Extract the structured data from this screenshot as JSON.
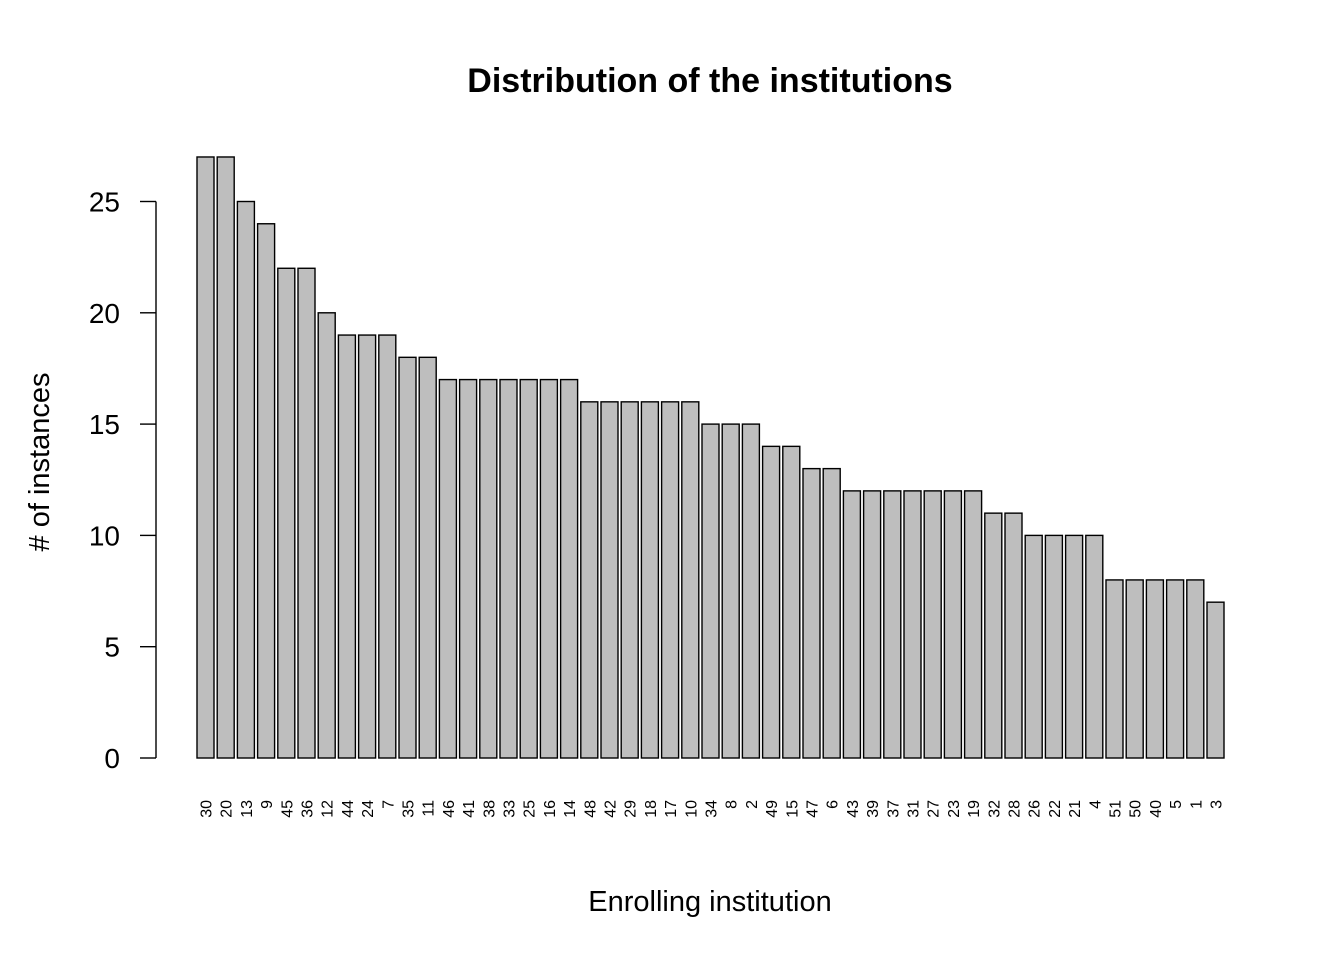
{
  "chart_data": {
    "type": "bar",
    "title": "Distribution of the institutions",
    "xlabel": "Enrolling institution",
    "ylabel": "# of instances",
    "categories": [
      "30",
      "20",
      "13",
      "9",
      "45",
      "36",
      "12",
      "44",
      "24",
      "7",
      "35",
      "11",
      "46",
      "41",
      "38",
      "33",
      "25",
      "16",
      "14",
      "48",
      "42",
      "29",
      "18",
      "17",
      "10",
      "34",
      "8",
      "2",
      "49",
      "15",
      "47",
      "6",
      "43",
      "39",
      "37",
      "31",
      "27",
      "23",
      "19",
      "32",
      "28",
      "26",
      "22",
      "21",
      "4",
      "51",
      "50",
      "40",
      "5",
      "1",
      "3"
    ],
    "values": [
      27,
      27,
      25,
      24,
      22,
      22,
      20,
      19,
      19,
      19,
      18,
      18,
      17,
      17,
      17,
      17,
      17,
      17,
      17,
      16,
      16,
      16,
      16,
      16,
      16,
      15,
      15,
      15,
      14,
      14,
      13,
      13,
      12,
      12,
      12,
      12,
      12,
      12,
      12,
      11,
      11,
      10,
      10,
      10,
      10,
      8,
      8,
      8,
      8,
      8,
      7
    ],
    "yticks": [
      "0",
      "5",
      "10",
      "15",
      "20",
      "25"
    ],
    "ylim": [
      0,
      27
    ],
    "grid": false,
    "legend": "none",
    "bar_fill": "#bebebe",
    "bar_stroke": "#000000"
  }
}
